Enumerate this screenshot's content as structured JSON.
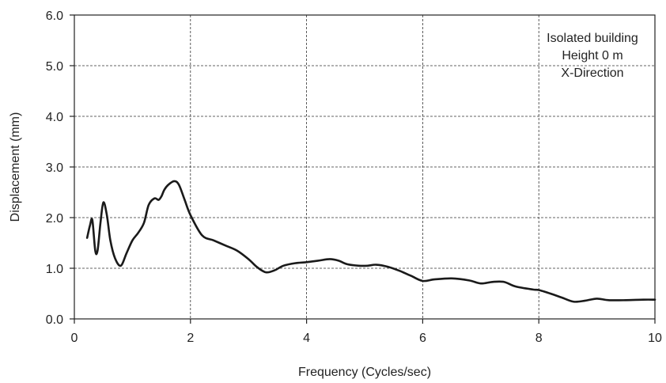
{
  "chart_data": {
    "type": "line",
    "title": "",
    "xlabel": "Frequency (Cycles/sec)",
    "ylabel": "Displacement (mm)",
    "xlim": [
      0,
      10
    ],
    "ylim": [
      0,
      6
    ],
    "x_ticks": [
      "0",
      "2",
      "4",
      "6",
      "8",
      "10"
    ],
    "y_ticks": [
      "0.0",
      "1.0",
      "2.0",
      "3.0",
      "4.0",
      "5.0",
      "6.0"
    ],
    "grid": true,
    "annotation": [
      "Isolated building",
      "Height 0 m",
      "X-Direction"
    ],
    "line_color": "#1a1a1a",
    "series": [
      {
        "x": [
          0.22,
          0.27,
          0.31,
          0.36,
          0.4,
          0.45,
          0.5,
          0.56,
          0.62,
          0.7,
          0.8,
          0.9,
          1.0,
          1.1,
          1.2,
          1.28,
          1.38,
          1.45,
          1.5,
          1.55,
          1.62,
          1.72,
          1.8,
          1.9,
          2.0,
          2.2,
          2.4,
          2.6,
          2.8,
          3.0,
          3.15,
          3.3,
          3.45,
          3.6,
          3.8,
          4.0,
          4.2,
          4.4,
          4.55,
          4.7,
          4.9,
          5.05,
          5.2,
          5.4,
          5.6,
          5.8,
          6.0,
          6.2,
          6.5,
          6.8,
          7.0,
          7.2,
          7.4,
          7.6,
          7.9,
          8.0,
          8.2,
          8.4,
          8.6,
          8.8,
          9.0,
          9.2,
          9.5,
          9.8,
          10.0
        ],
        "y": [
          1.6,
          1.85,
          1.95,
          1.35,
          1.35,
          1.9,
          2.3,
          2.05,
          1.55,
          1.2,
          1.05,
          1.3,
          1.55,
          1.7,
          1.9,
          2.25,
          2.38,
          2.35,
          2.42,
          2.55,
          2.65,
          2.72,
          2.65,
          2.35,
          2.05,
          1.65,
          1.55,
          1.45,
          1.35,
          1.18,
          1.02,
          0.92,
          0.96,
          1.05,
          1.1,
          1.12,
          1.15,
          1.18,
          1.15,
          1.08,
          1.05,
          1.05,
          1.07,
          1.03,
          0.95,
          0.85,
          0.75,
          0.78,
          0.8,
          0.76,
          0.7,
          0.73,
          0.73,
          0.64,
          0.58,
          0.57,
          0.5,
          0.42,
          0.34,
          0.36,
          0.4,
          0.37,
          0.37,
          0.38,
          0.38
        ]
      }
    ]
  }
}
